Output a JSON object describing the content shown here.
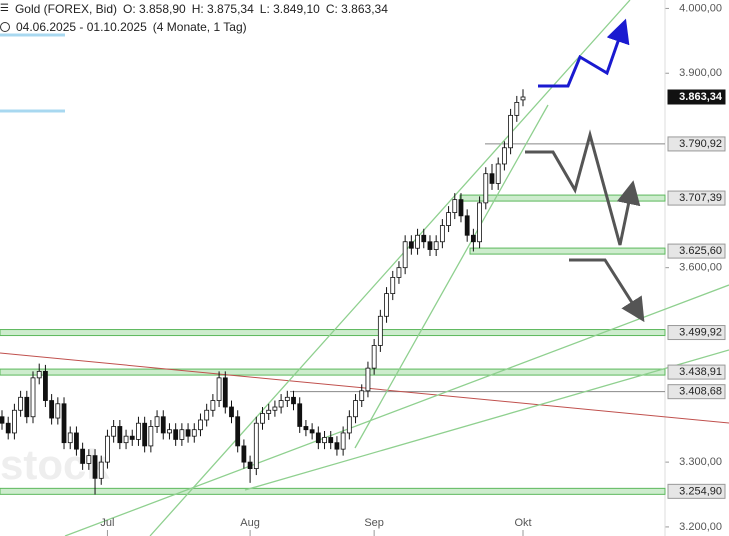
{
  "header": {
    "instrument": "Gold (FOREX, Bid)",
    "open": "O: 3.858,90",
    "high": "H: 3.875,34",
    "low": "L: 3.849,10",
    "close": "C: 3.863,34",
    "range": "04.06.2025 - 01.10.2025",
    "period": "(4 Monate, 1 Tag)"
  },
  "chart_data": {
    "type": "candlestick",
    "watermark": "stock",
    "categories": [
      null,
      null,
      null,
      null,
      null,
      null,
      null,
      null,
      null,
      null,
      null,
      null,
      null,
      null,
      null,
      null,
      null,
      "Jul",
      null,
      null,
      null,
      null,
      null,
      null,
      null,
      null,
      null,
      null,
      null,
      null,
      null,
      null,
      null,
      null,
      null,
      null,
      null,
      null,
      null,
      null,
      "Aug",
      null,
      null,
      null,
      null,
      null,
      null,
      null,
      null,
      null,
      null,
      null,
      null,
      null,
      null,
      null,
      null,
      null,
      null,
      null,
      "Sep",
      null,
      null,
      null,
      null,
      null,
      null,
      null,
      null,
      null,
      null,
      null,
      null,
      null,
      null,
      null,
      null,
      null,
      null,
      null,
      null,
      null,
      null,
      null,
      "Okt"
    ],
    "series": [
      {
        "name": "Gold (FOREX, Bid)",
        "up_color": "#ffffff",
        "down_color": "#111111",
        "open": [
          3370,
          3360,
          3345,
          3380,
          3400,
          3370,
          3430,
          3440,
          3395,
          3368,
          3390,
          3330,
          3345,
          3320,
          3298,
          3310,
          3275,
          3300,
          3340,
          3355,
          3330,
          3340,
          3335,
          3360,
          3325,
          3355,
          3370,
          3345,
          3350,
          3335,
          3350,
          3340,
          3350,
          3365,
          3380,
          3395,
          3430,
          3385,
          3370,
          3325,
          3300,
          3290,
          3360,
          3375,
          3380,
          3385,
          3395,
          3400,
          3390,
          3355,
          3350,
          3345,
          3330,
          3338,
          3330,
          3320,
          3345,
          3370,
          3395,
          3410,
          3445,
          3480,
          3525,
          3560,
          3585,
          3600,
          3640,
          3630,
          3650,
          3640,
          3628,
          3640,
          3665,
          3685,
          3705,
          3680,
          3650,
          3640,
          3700,
          3745,
          3730,
          3760,
          3785,
          3835,
          3858.9
        ],
        "high": [
          3380,
          3370,
          3390,
          3410,
          3410,
          3440,
          3452,
          3450,
          3405,
          3400,
          3400,
          3355,
          3355,
          3330,
          3320,
          3320,
          3310,
          3350,
          3365,
          3365,
          3350,
          3350,
          3370,
          3370,
          3365,
          3380,
          3380,
          3360,
          3360,
          3360,
          3360,
          3360,
          3375,
          3390,
          3405,
          3440,
          3440,
          3395,
          3380,
          3335,
          3310,
          3370,
          3385,
          3390,
          3395,
          3405,
          3410,
          3410,
          3400,
          3365,
          3360,
          3355,
          3348,
          3348,
          3340,
          3355,
          3380,
          3405,
          3420,
          3455,
          3490,
          3535,
          3570,
          3595,
          3610,
          3650,
          3650,
          3660,
          3660,
          3650,
          3650,
          3675,
          3695,
          3715,
          3715,
          3690,
          3660,
          3710,
          3755,
          3760,
          3770,
          3795,
          3845,
          3865,
          3875.34
        ],
        "low": [
          3350,
          3335,
          3335,
          3370,
          3360,
          3360,
          3420,
          3385,
          3358,
          3358,
          3320,
          3320,
          3310,
          3288,
          3288,
          3250,
          3265,
          3290,
          3330,
          3320,
          3320,
          3325,
          3325,
          3315,
          3315,
          3345,
          3335,
          3335,
          3325,
          3325,
          3330,
          3330,
          3340,
          3355,
          3370,
          3385,
          3375,
          3360,
          3315,
          3290,
          3268,
          3280,
          3350,
          3365,
          3370,
          3375,
          3385,
          3380,
          3345,
          3340,
          3335,
          3320,
          3320,
          3320,
          3310,
          3310,
          3335,
          3360,
          3385,
          3400,
          3435,
          3470,
          3515,
          3550,
          3575,
          3590,
          3620,
          3620,
          3630,
          3618,
          3618,
          3630,
          3655,
          3675,
          3670,
          3640,
          3625,
          3630,
          3690,
          3720,
          3720,
          3750,
          3775,
          3825,
          3849.1
        ],
        "close": [
          3360,
          3345,
          3380,
          3400,
          3370,
          3430,
          3440,
          3395,
          3368,
          3390,
          3330,
          3345,
          3320,
          3298,
          3310,
          3275,
          3300,
          3340,
          3355,
          3330,
          3340,
          3335,
          3360,
          3325,
          3355,
          3370,
          3345,
          3350,
          3335,
          3350,
          3340,
          3350,
          3365,
          3380,
          3395,
          3430,
          3385,
          3370,
          3325,
          3300,
          3290,
          3360,
          3375,
          3380,
          3385,
          3395,
          3400,
          3390,
          3355,
          3350,
          3345,
          3330,
          3338,
          3330,
          3320,
          3345,
          3370,
          3395,
          3410,
          3445,
          3480,
          3525,
          3560,
          3585,
          3600,
          3640,
          3630,
          3650,
          3640,
          3628,
          3640,
          3665,
          3685,
          3705,
          3680,
          3650,
          3640,
          3700,
          3745,
          3730,
          3760,
          3785,
          3835,
          3855,
          3863.34
        ]
      }
    ],
    "ylim": [
      3186,
      4013
    ],
    "yticks": [
      {
        "value": 3200,
        "label": "3.200,00"
      },
      {
        "value": 3300,
        "label": "3.300,00"
      },
      {
        "value": 3600,
        "label": "3.600,00"
      },
      {
        "value": 3900,
        "label": "3.900,00"
      },
      {
        "value": 4000,
        "label": "4.000,00"
      }
    ],
    "levels": [
      {
        "value": 3863.34,
        "label": "3.863,34",
        "kind": "current"
      },
      {
        "value": 3790.92,
        "label": "3.790,92",
        "kind": "line"
      },
      {
        "value": 3707.39,
        "label": "3.707,39",
        "kind": "zone"
      },
      {
        "value": 3625.6,
        "label": "3.625,60",
        "kind": "zone"
      },
      {
        "value": 3499.92,
        "label": "3.499,92",
        "kind": "zone"
      },
      {
        "value": 3438.91,
        "label": "3.438,91",
        "kind": "zone"
      },
      {
        "value": 3408.68,
        "label": "3.408,68",
        "kind": "line"
      },
      {
        "value": 3254.9,
        "label": "3.254,90",
        "kind": "zone"
      }
    ]
  }
}
